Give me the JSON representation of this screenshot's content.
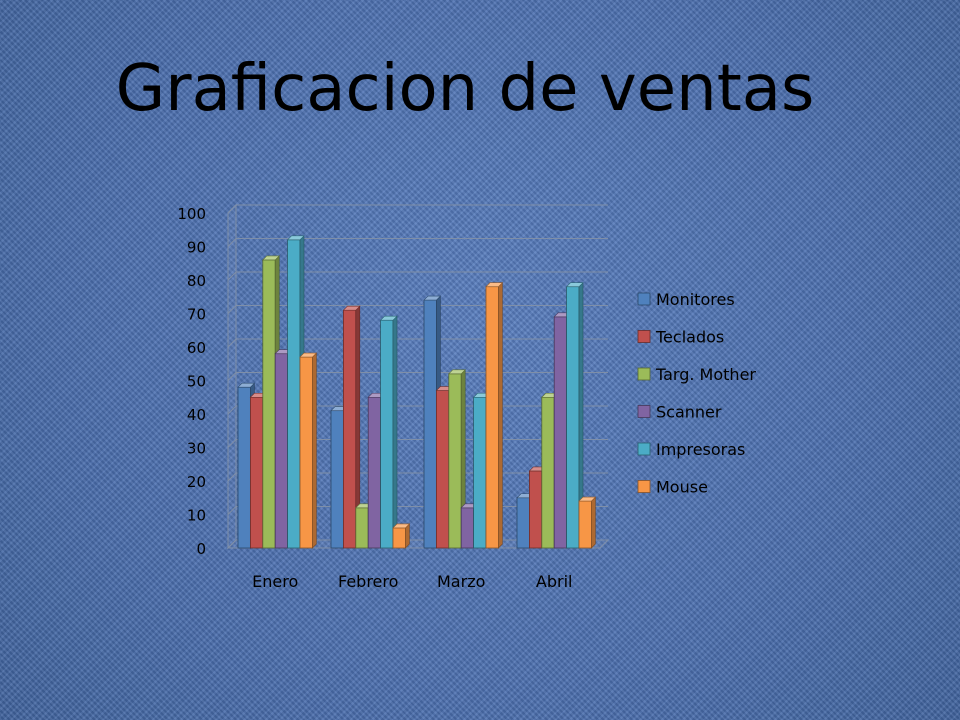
{
  "slide": {
    "title": "Graficacion de ventas",
    "footer_date": "",
    "footer_text": ""
  },
  "chart_data": {
    "type": "bar",
    "categories": [
      "Enero",
      "Febrero",
      "Marzo",
      "Abril"
    ],
    "series": [
      {
        "name": "Monitores",
        "color": "#4f81bd",
        "values": [
          48,
          41,
          74,
          15
        ]
      },
      {
        "name": "Teclados",
        "color": "#c0504d",
        "values": [
          45,
          71,
          47,
          23
        ]
      },
      {
        "name": "Targ. Mother",
        "color": "#9bbb59",
        "values": [
          86,
          12,
          52,
          45
        ]
      },
      {
        "name": "Scanner",
        "color": "#8064a2",
        "values": [
          58,
          45,
          12,
          69
        ]
      },
      {
        "name": "Impresoras",
        "color": "#4bacc6",
        "values": [
          92,
          68,
          45,
          78
        ]
      },
      {
        "name": "Mouse",
        "color": "#f79646",
        "values": [
          57,
          6,
          78,
          14
        ]
      }
    ],
    "ylim": [
      0,
      100
    ],
    "yticks": [
      0,
      10,
      20,
      30,
      40,
      50,
      60,
      70,
      80,
      90,
      100
    ],
    "grid": true,
    "legend": "right",
    "style": "3d-clustered-column"
  }
}
